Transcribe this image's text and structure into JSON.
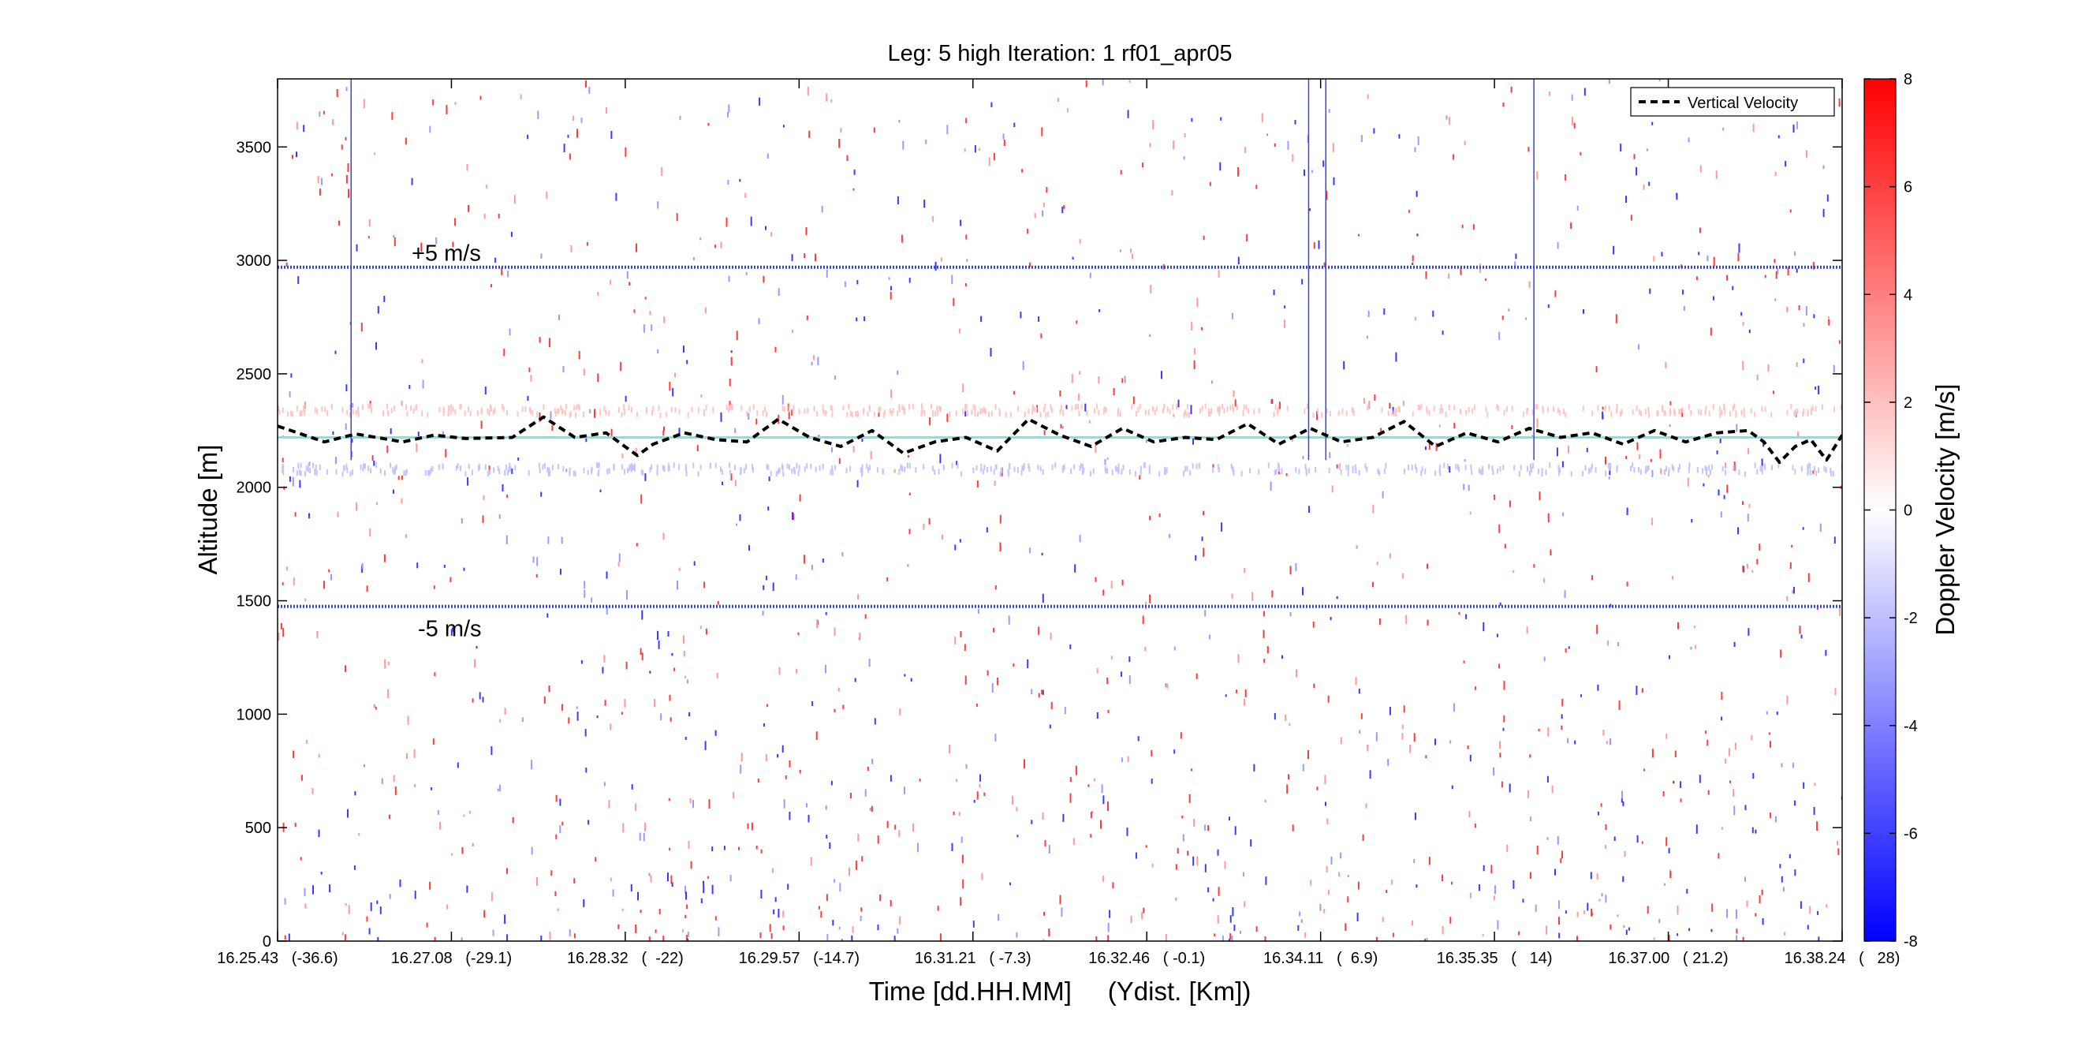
{
  "chart_data": {
    "type": "heatmap",
    "title": "Leg: 5 high Iteration: 1  rf01_apr05",
    "xlabel": "Time [dd.HH.MM]     (Ydist. [Km])",
    "ylabel": "Altitude [m]",
    "colorbar_label": "Doppler Velocity [m/s]",
    "x_tick_labels": [
      "16.25.43   (-36.6)",
      "16.27.08   (-29.1)",
      "16.28.32   (  -22)",
      "16.29.57   (-14.7)",
      "16.31.21   ( -7.3)",
      "16.32.46   ( -0.1)",
      "16.34.11   (  6.9)",
      "16.35.35   (   14)",
      "16.37.00   ( 21.2)",
      "16.38.24   (   28)"
    ],
    "y_ticks": [
      0,
      500,
      1000,
      1500,
      2000,
      2500,
      3000,
      3500
    ],
    "ylim": [
      0,
      3800
    ],
    "colorbar_ticks": [
      -8,
      -6,
      -4,
      -2,
      0,
      2,
      4,
      6,
      8
    ],
    "clim": [
      -8,
      8
    ],
    "colormap": {
      "low": "#0000ff",
      "mid": "#ffffff",
      "high": "#ff0000"
    },
    "reference_lines": [
      {
        "label": "+5 m/s",
        "altitude": 2970,
        "color": "#3344dd"
      },
      {
        "label": "-5 m/s",
        "altitude": 1475,
        "color": "#3344dd"
      }
    ],
    "flight_level": {
      "altitude": 2220,
      "color": "#7fe5dd"
    },
    "vertical_markers_time_fraction": [
      0.047,
      0.659,
      0.67,
      0.803
    ],
    "legend": {
      "placement": "top-right",
      "entries": [
        "Vertical Velocity"
      ]
    },
    "series": [
      {
        "name": "Vertical Velocity",
        "style": "dashed",
        "color": "#000000",
        "x_fraction": [
          0.0,
          0.03,
          0.05,
          0.08,
          0.1,
          0.12,
          0.15,
          0.17,
          0.19,
          0.21,
          0.23,
          0.24,
          0.26,
          0.28,
          0.3,
          0.32,
          0.34,
          0.36,
          0.38,
          0.4,
          0.42,
          0.44,
          0.46,
          0.48,
          0.5,
          0.52,
          0.54,
          0.56,
          0.58,
          0.6,
          0.62,
          0.64,
          0.66,
          0.68,
          0.7,
          0.72,
          0.74,
          0.76,
          0.78,
          0.8,
          0.82,
          0.84,
          0.86,
          0.88,
          0.9,
          0.92,
          0.94,
          0.95,
          0.96,
          0.97,
          0.98,
          0.99,
          1.0
        ],
        "altitude": [
          2270,
          2200,
          2235,
          2200,
          2230,
          2215,
          2220,
          2310,
          2220,
          2240,
          2140,
          2190,
          2240,
          2210,
          2200,
          2300,
          2220,
          2180,
          2250,
          2150,
          2200,
          2220,
          2160,
          2300,
          2230,
          2180,
          2260,
          2200,
          2220,
          2210,
          2280,
          2190,
          2260,
          2200,
          2220,
          2290,
          2180,
          2240,
          2200,
          2260,
          2220,
          2240,
          2190,
          2250,
          2200,
          2240,
          2250,
          2200,
          2110,
          2180,
          2210,
          2120,
          2230
        ]
      }
    ]
  }
}
